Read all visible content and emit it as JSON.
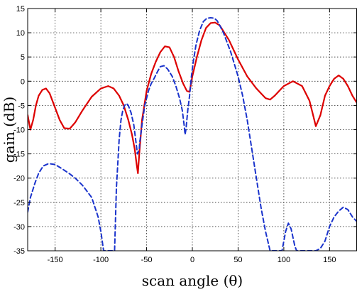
{
  "chart_data": {
    "type": "line",
    "xlabel": "scan angle (θ)",
    "ylabel": "gain (dB)",
    "xlim": [
      -180,
      180
    ],
    "ylim": [
      -35,
      15
    ],
    "xticks": [
      -150,
      -100,
      -50,
      0,
      50,
      100,
      150
    ],
    "yticks": [
      15,
      10,
      5,
      0,
      -5,
      -10,
      -15,
      -20,
      -25,
      -30,
      -35
    ],
    "grid": true,
    "series": [
      {
        "color": "#dd0000",
        "style": "solid",
        "x": [
          -180,
          -177,
          -174,
          -171,
          -168,
          -164,
          -160,
          -156,
          -150,
          -145,
          -140,
          -134,
          -128,
          -120,
          -110,
          -100,
          -92,
          -86,
          -80,
          -75,
          -70,
          -66,
          -63,
          -61,
          -59.5,
          -58,
          -55,
          -50,
          -45,
          -40,
          -35,
          -30,
          -25,
          -20,
          -15,
          -10,
          -6,
          -3,
          0,
          5,
          10,
          15,
          20,
          25,
          30,
          35,
          40,
          45,
          50,
          60,
          70,
          80,
          85,
          90,
          100,
          110,
          120,
          128,
          132,
          135,
          140,
          145,
          150,
          155,
          160,
          165,
          170,
          175,
          180
        ],
        "y": [
          -7,
          -10,
          -8,
          -5,
          -3,
          -1.8,
          -1.5,
          -2.5,
          -5.5,
          -8,
          -9.7,
          -9.8,
          -8.5,
          -6,
          -3.2,
          -1.5,
          -1,
          -1.5,
          -3,
          -5,
          -8,
          -11,
          -14,
          -17,
          -19,
          -15,
          -8,
          -2,
          1.5,
          4,
          6,
          7.2,
          7,
          5,
          2,
          -0.5,
          -2,
          -2.2,
          1,
          5,
          8.5,
          11,
          12,
          12.1,
          11.5,
          10,
          8.5,
          6.5,
          4.5,
          1,
          -1.5,
          -3.5,
          -3.8,
          -3,
          -1,
          0,
          -1,
          -4,
          -7,
          -9.3,
          -7,
          -3,
          -1,
          0.5,
          1.2,
          0.5,
          -1,
          -3,
          -4.5
        ]
      },
      {
        "color": "#1a33cc",
        "style": "dashed",
        "x": [
          -180,
          -177,
          -172,
          -168,
          -163,
          -157,
          -150,
          -143,
          -135,
          -128,
          -120,
          -110,
          -103,
          -100,
          -97,
          -93,
          -91,
          -89,
          -88,
          -87,
          -86,
          -85,
          -83,
          -80,
          -78,
          -76,
          -74,
          -72,
          -70,
          -67,
          -64,
          -62,
          -60,
          -58,
          -57.5,
          -57,
          -55,
          -52,
          -48,
          -45,
          -42,
          -38,
          -35,
          -31,
          -27,
          -22,
          -18,
          -14,
          -11,
          -9,
          -8,
          -7,
          -5,
          -3,
          -1,
          1,
          4,
          8,
          12,
          16,
          20,
          24,
          27,
          30,
          34,
          38,
          42,
          46,
          50,
          55,
          60,
          65,
          70,
          75,
          80,
          85,
          88,
          90,
          92,
          95,
          98,
          100,
          102,
          105,
          108,
          112,
          114,
          116,
          118,
          122,
          128,
          135,
          140,
          145,
          150,
          155,
          160,
          165,
          170,
          175,
          180
        ],
        "y": [
          -27,
          -24,
          -21,
          -19,
          -17.5,
          -17,
          -17.2,
          -18,
          -19,
          -20,
          -21.5,
          -24,
          -28,
          -31,
          -35,
          -35,
          -35,
          -35,
          -35,
          -35,
          -35,
          -35,
          -22,
          -12,
          -8,
          -6,
          -5,
          -4.6,
          -5,
          -6.5,
          -9,
          -12,
          -15,
          -14,
          -12.5,
          -12,
          -9,
          -5,
          -2,
          -0.5,
          0.5,
          2,
          3,
          3.2,
          2.5,
          1,
          -1,
          -3.5,
          -6,
          -9,
          -11,
          -10,
          -6,
          -3,
          1,
          4,
          7.5,
          10.5,
          12.3,
          13,
          13.1,
          13,
          12.5,
          11.5,
          10,
          8,
          6,
          3.5,
          1,
          -3,
          -8,
          -14,
          -20,
          -26,
          -31,
          -35,
          -35,
          -35,
          -35,
          -35,
          -35,
          -33,
          -31,
          -29.3,
          -30.5,
          -34,
          -35,
          -35,
          -35,
          -35,
          -35,
          -35,
          -34.5,
          -33,
          -30,
          -28,
          -26.8,
          -26,
          -26.5,
          -28,
          -29
        ]
      }
    ]
  }
}
